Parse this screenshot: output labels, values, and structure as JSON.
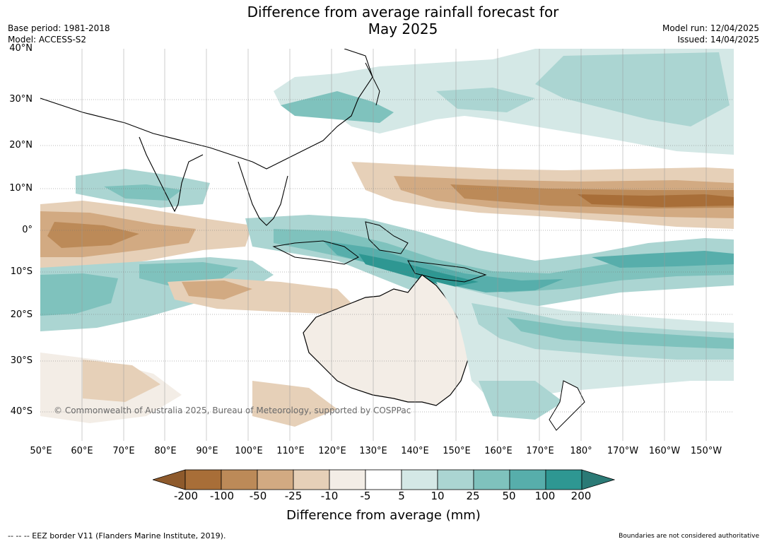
{
  "title": {
    "line1": "Difference from average rainfall forecast for",
    "line2": "May 2025"
  },
  "meta_left": {
    "base_period": "Base period: 1981-2018",
    "model": "Model: ACCESS-S2"
  },
  "meta_right": {
    "model_run": "Model run: 12/04/2025",
    "issued": "Issued: 14/04/2025"
  },
  "lat_labels": [
    "40°N",
    "30°N",
    "20°N",
    "10°N",
    "0°",
    "10°S",
    "20°S",
    "30°S",
    "40°S"
  ],
  "lon_labels": [
    "50°E",
    "60°E",
    "70°E",
    "80°E",
    "90°E",
    "100°E",
    "110°E",
    "120°E",
    "130°E",
    "140°E",
    "150°E",
    "160°E",
    "170°E",
    "180°",
    "170°W",
    "160°W",
    "150°W"
  ],
  "copyright": "© Commonwealth of Australia 2025, Bureau of Meteorology, supported by COSPPac",
  "colorbar": {
    "labels": [
      "-200",
      "-100",
      "-50",
      "-25",
      "-10",
      "-5",
      "5",
      "10",
      "25",
      "50",
      "100",
      "200"
    ],
    "colors": [
      "#a86e38",
      "#bc8a58",
      "#d2aa82",
      "#e6d0b8",
      "#f3ede6",
      "#ffffff",
      "#d4e8e6",
      "#abd5d2",
      "#7fc2bd",
      "#57aeab",
      "#2e9792"
    ],
    "under_color": "#8e5a2c",
    "over_color": "#2b7a76",
    "label": "Difference from average (mm)"
  },
  "footer_left": "--  --  -- EEZ border V11 (Flanders Marine Institute, 2019).",
  "footer_right": "Boundaries are not considered authoritative"
}
